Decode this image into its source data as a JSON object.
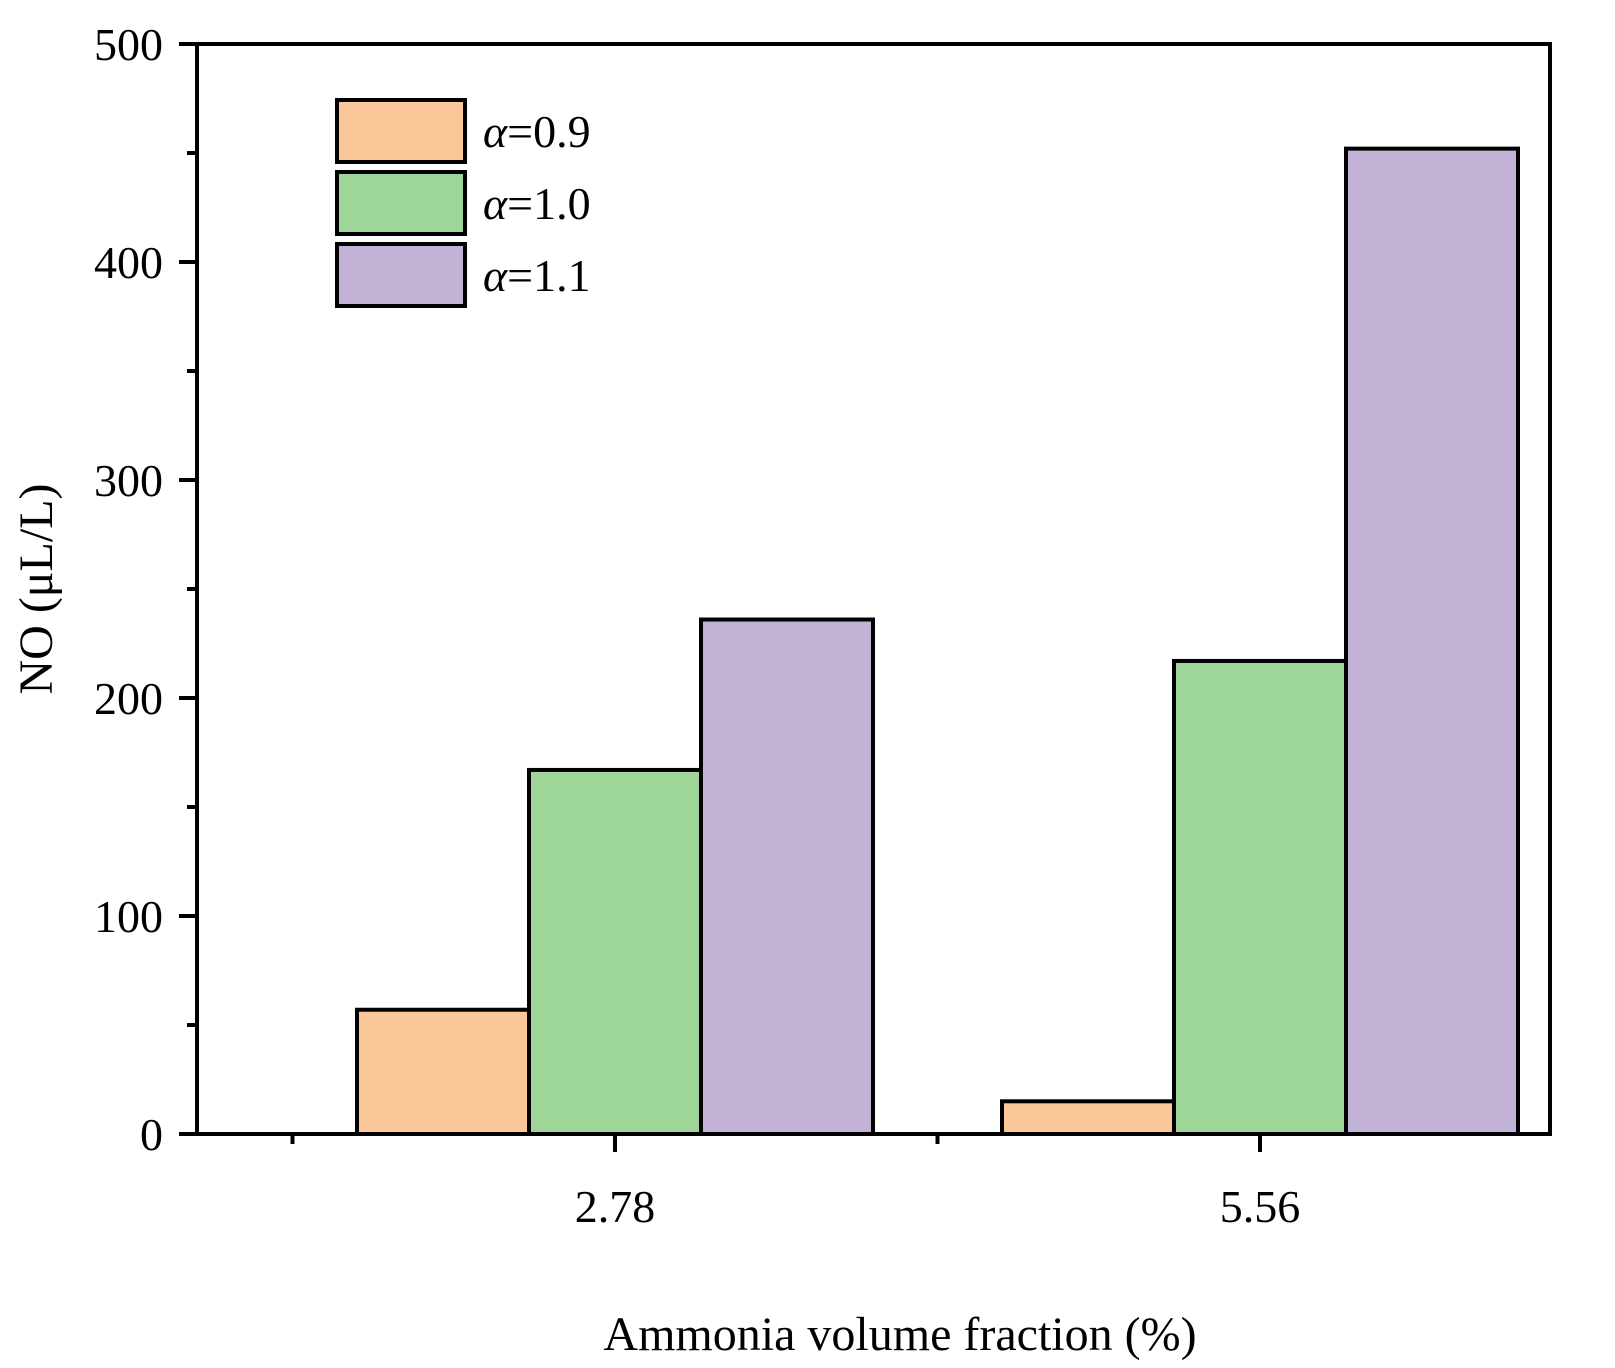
{
  "chart_data": {
    "type": "bar",
    "title": "",
    "xlabel": "Ammonia volume fraction (%)",
    "ylabel": "NO (μL/L)",
    "ylim": [
      0,
      500
    ],
    "yticks": [
      0,
      100,
      200,
      300,
      400,
      500
    ],
    "categories": [
      "2.78",
      "5.56"
    ],
    "legend_position": "top-left",
    "series": [
      {
        "name": "α=0.9",
        "symbol": "α",
        "suffix": "=0.9",
        "color": "#FAC898",
        "values": [
          57,
          15
        ]
      },
      {
        "name": "α=1.0",
        "symbol": "α",
        "suffix": "=1.0",
        "color": "#9ED69A",
        "values": [
          167,
          217
        ]
      },
      {
        "name": "α=1.1",
        "symbol": "α",
        "suffix": "=1.1",
        "color": "#C2B2D6",
        "values": [
          236,
          452
        ]
      }
    ]
  }
}
